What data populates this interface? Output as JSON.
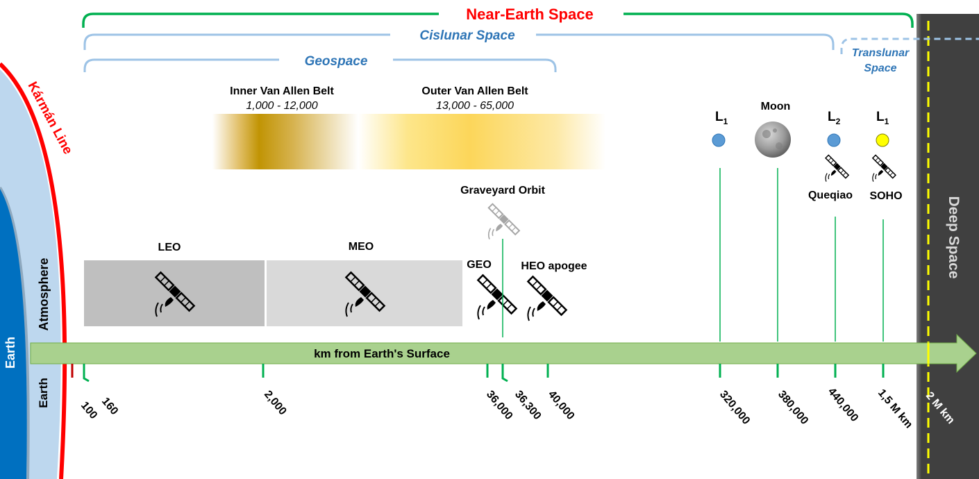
{
  "regions": {
    "near_earth": "Near-Earth Space",
    "cislunar": "Cislunar Space",
    "geospace": "Geospace",
    "translunar_line1": "Translunar",
    "translunar_line2": "Space",
    "deep_space": "Deep Space"
  },
  "belts": {
    "inner": {
      "name": "Inner Van Allen Belt",
      "range": "1,000 - 12,000"
    },
    "outer": {
      "name": "Outer Van Allen Belt",
      "range": "13,000 - 65,000"
    }
  },
  "orbits": {
    "leo": "LEO",
    "meo": "MEO",
    "geo": "GEO",
    "heo": "HEO apogee",
    "graveyard": "Graveyard Orbit"
  },
  "points": {
    "l1_moon": {
      "letter": "L",
      "sub": "1"
    },
    "moon": "Moon",
    "l2": {
      "letter": "L",
      "sub": "2"
    },
    "l1_sun": {
      "letter": "L",
      "sub": "1"
    },
    "queqiao": "Queqiao",
    "soho": "SOHO"
  },
  "layers": {
    "karman": "Kármán Line",
    "atmosphere": "Atmosphere",
    "earth": "Earth",
    "earth_surface": "Earth"
  },
  "axis": {
    "label": "km from Earth's Surface",
    "ticks": [
      "100",
      "160",
      "2,000",
      "36,000",
      "36,300",
      "40,000",
      "320,000",
      "380,000",
      "440,000",
      "1,5 M km",
      "2 M km"
    ]
  },
  "colors": {
    "near_earth": "#00b050",
    "cislunar": "#9dc3e6",
    "label_blue": "#2e75b6",
    "red": "#ff0000",
    "arrow_fill": "#a9d18e",
    "tick_green": "#00b050",
    "deep_space": "#404040",
    "boundary": "#ffff00",
    "earth_blue": "#0070c0",
    "atmosphere": "#bdd7ee",
    "lagrange_blue": "#5b9bd5",
    "sun_l1": "#ffff00"
  }
}
